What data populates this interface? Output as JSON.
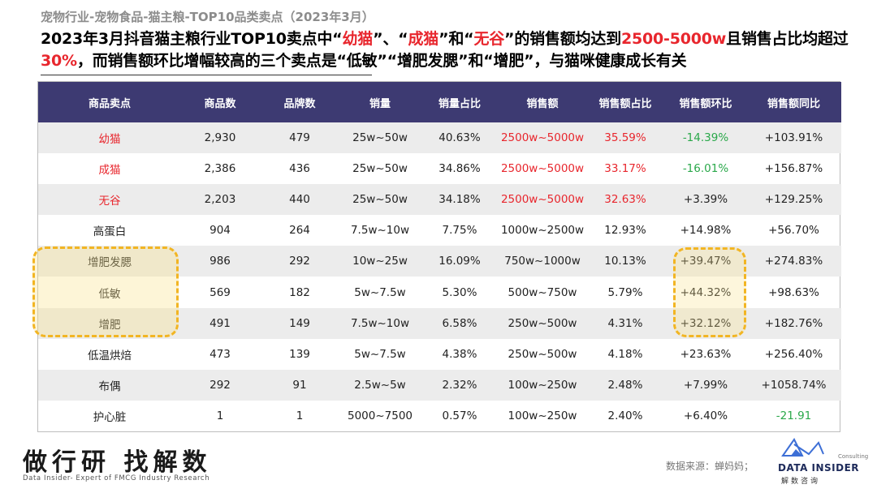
{
  "breadcrumb": "宠物行业-宠物食品-猫主粮-TOP10品类卖点（2023年3月）",
  "headline": {
    "p1": "2023年3月抖音猫主粮行业TOP10卖点中“",
    "h1": "幼猫",
    "p2": "”、“",
    "h2": "成猫",
    "p3": "”和“",
    "h3": "无谷",
    "p4": "”的销售额均达到",
    "h4": "2500-5000w",
    "p5": "且销售占比均超过",
    "h5": "30%",
    "p6": "，而销售额环比增幅较高的三个卖点是“低敏”“增肥发腮”和“增肥”，与猫咪健康成长有关"
  },
  "table": {
    "headers": [
      "商品卖点",
      "商品数",
      "品牌数",
      "销量",
      "销量占比",
      "销售额",
      "销售额占比",
      "销售额环比",
      "销售额同比"
    ],
    "rows": [
      [
        "幼猫",
        "2,930",
        "479",
        "25w~50w",
        "40.63%",
        "2500w~5000w",
        "35.59%",
        "-14.39%",
        "+103.91%"
      ],
      [
        "成猫",
        "2,386",
        "436",
        "25w~50w",
        "34.86%",
        "2500w~5000w",
        "33.17%",
        "-16.01%",
        "+156.87%"
      ],
      [
        "无谷",
        "2,203",
        "440",
        "25w~50w",
        "34.18%",
        "2500w~5000w",
        "32.63%",
        "+3.39%",
        "+129.25%"
      ],
      [
        "高蛋白",
        "904",
        "264",
        "7.5w~10w",
        "7.75%",
        "1000w~2500w",
        "12.93%",
        "+14.98%",
        "+56.70%"
      ],
      [
        "增肥发腮",
        "986",
        "292",
        "10w~25w",
        "16.09%",
        "750w~1000w",
        "10.13%",
        "+39.47%",
        "+274.83%"
      ],
      [
        "低敏",
        "569",
        "182",
        "5w~7.5w",
        "5.30%",
        "500w~750w",
        "5.79%",
        "+44.32%",
        "+98.63%"
      ],
      [
        "增肥",
        "491",
        "149",
        "7.5w~10w",
        "6.58%",
        "250w~500w",
        "4.31%",
        "+32.12%",
        "+182.76%"
      ],
      [
        "低温烘焙",
        "473",
        "139",
        "5w~7.5w",
        "4.38%",
        "250w~500w",
        "4.18%",
        "+23.63%",
        "+256.40%"
      ],
      [
        "布偶",
        "292",
        "91",
        "2.5w~5w",
        "2.32%",
        "100w~250w",
        "2.48%",
        "+7.99%",
        "+1058.74%"
      ],
      [
        "护心脏",
        "1",
        "1",
        "5000~7500",
        "0.57%",
        "100w~250w",
        "2.40%",
        "+6.40%",
        "-21.91"
      ]
    ]
  },
  "footer": {
    "brand": "做行研 找解数",
    "brand_sub": "Data Insider- Expert of FMCG Industry Research",
    "source": "数据来源：蝉妈妈；",
    "logo_consulting": "Consulting",
    "logo_name": "DATA INSIDER",
    "logo_cn": "解数咨询"
  },
  "colors": {
    "header_bg": "#3d3a72",
    "highlight_red": "#e8262d",
    "negative_green": "#2aa84a",
    "highlight_box": "#f2b523"
  }
}
